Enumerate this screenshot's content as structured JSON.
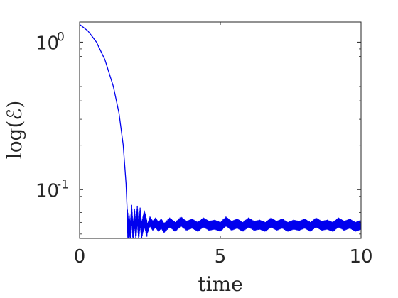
{
  "chart_data": {
    "type": "line",
    "xlabel": "time",
    "ylabel": "log(ℰ)",
    "xlim": [
      0,
      10
    ],
    "ylim": [
      0.0467,
      1.37
    ],
    "yscale": "log",
    "grid": false,
    "box": true,
    "x_ticks": [
      {
        "value": 0,
        "label": "0"
      },
      {
        "value": 5,
        "label": "5"
      },
      {
        "value": 10,
        "label": "10"
      }
    ],
    "y_ticks": [
      {
        "value": 1,
        "base": "10",
        "exp": "0"
      },
      {
        "value": 0.1,
        "base": "10",
        "exp": "-1"
      }
    ],
    "series": [
      {
        "color": "#0000ee",
        "x": [
          0,
          0.3,
          0.6,
          0.9,
          1.2,
          1.4,
          1.55,
          1.65,
          1.7,
          1.72,
          1.75,
          1.8,
          1.85,
          1.9,
          1.95,
          2.0,
          2.05,
          2.1,
          2.15,
          2.2,
          2.3,
          2.4,
          2.5,
          2.6,
          2.7,
          2.8,
          2.9,
          3.0,
          3.2,
          3.4,
          3.6,
          3.8,
          4.0,
          4.2,
          4.4,
          4.6,
          4.8,
          5.0,
          5.2,
          5.4,
          5.6,
          5.8,
          6.0,
          6.2,
          6.4,
          6.6,
          6.8,
          7.0,
          7.2,
          7.4,
          7.6,
          7.8,
          8.0,
          8.2,
          8.4,
          8.6,
          8.8,
          9.0,
          9.2,
          9.4,
          9.6,
          9.8,
          10.0
        ],
        "y": [
          1.32,
          1.19,
          1.0,
          0.76,
          0.5,
          0.33,
          0.2,
          0.11,
          0.065,
          0.048,
          0.062,
          0.052,
          0.07,
          0.05,
          0.066,
          0.052,
          0.069,
          0.051,
          0.067,
          0.053,
          0.064,
          0.054,
          0.061,
          0.057,
          0.06,
          0.056,
          0.059,
          0.055,
          0.06,
          0.056,
          0.061,
          0.057,
          0.059,
          0.056,
          0.06,
          0.057,
          0.058,
          0.056,
          0.061,
          0.057,
          0.059,
          0.056,
          0.06,
          0.057,
          0.058,
          0.056,
          0.06,
          0.057,
          0.059,
          0.056,
          0.058,
          0.057,
          0.059,
          0.056,
          0.06,
          0.057,
          0.058,
          0.056,
          0.06,
          0.057,
          0.059,
          0.056,
          0.058
        ]
      }
    ]
  }
}
